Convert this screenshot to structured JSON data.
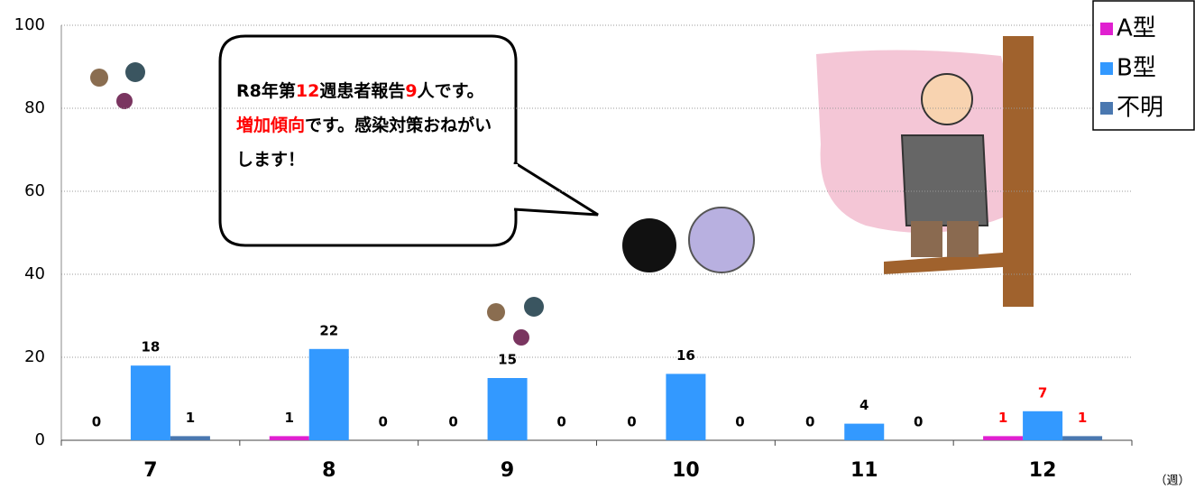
{
  "chart_data": {
    "type": "bar",
    "categories": [
      "7",
      "8",
      "9",
      "10",
      "11",
      "12"
    ],
    "series": [
      {
        "name": "A型",
        "color": "#e020d0",
        "values": [
          0,
          1,
          0,
          0,
          0,
          1
        ]
      },
      {
        "name": "B型",
        "color": "#3399ff",
        "values": [
          18,
          22,
          15,
          16,
          4,
          7
        ]
      },
      {
        "name": "不明",
        "color": "#4a78b0",
        "values": [
          1,
          0,
          0,
          0,
          0,
          1
        ]
      }
    ],
    "label_colors": [
      "#000000",
      "#000000",
      "#000000",
      "#000000",
      "#000000",
      "#ff0000"
    ],
    "ylim": [
      0,
      100
    ],
    "yticks": [
      0,
      20,
      40,
      60,
      80,
      100
    ],
    "grid": true,
    "x_unit": "（週）",
    "legend": "top-right",
    "annotation": [
      {
        "text": "R8年第",
        "color": "#000000"
      },
      {
        "text": "12",
        "color": "#ff0000"
      },
      {
        "text": "週患者報告",
        "color": "#000000"
      },
      {
        "text": "9",
        "color": "#ff0000"
      },
      {
        "text": "人です。",
        "color": "#000000"
      },
      {
        "text": "増加傾向",
        "color": "#ff0000"
      },
      {
        "text": "です。感染対策おねがいします！",
        "color": "#000000"
      }
    ]
  }
}
